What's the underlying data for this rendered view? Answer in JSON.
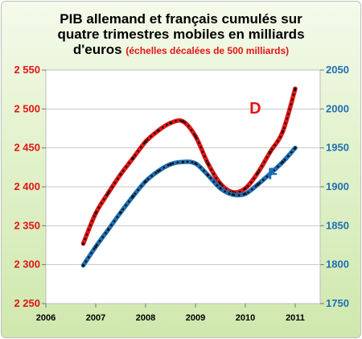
{
  "chart_data": {
    "type": "line",
    "title_line1": "PIB allemand et français cumulés sur",
    "title_line2": "quatre trimestres mobiles en milliards",
    "title_line3": "d'euros",
    "title_note": "(échelles décalées de 500 milliards)",
    "x_ticks": [
      "2006",
      "2007",
      "2008",
      "2009",
      "2010",
      "2011"
    ],
    "x_range": [
      2006,
      2011.5
    ],
    "y_left": {
      "range": [
        2250,
        2550
      ],
      "ticks": [
        "2 250",
        "2 300",
        "2 350",
        "2 400",
        "2 450",
        "2 500",
        "2 550"
      ],
      "color": "#e41414"
    },
    "y_right": {
      "range": [
        1750,
        2050
      ],
      "ticks": [
        "1750",
        "1800",
        "1850",
        "1900",
        "1950",
        "2000",
        "2050"
      ],
      "color": "#1f6fb2"
    },
    "grid": "horizontal",
    "series": [
      {
        "name": "D",
        "axis": "left",
        "color": "#e41414",
        "x": [
          2006.75,
          2007.0,
          2007.25,
          2007.5,
          2007.75,
          2008.0,
          2008.25,
          2008.5,
          2008.75,
          2009.0,
          2009.25,
          2009.5,
          2009.75,
          2010.0,
          2010.25,
          2010.5,
          2010.75,
          2011.0
        ],
        "y": [
          2327,
          2366,
          2392,
          2416,
          2437,
          2458,
          2472,
          2482,
          2484,
          2465,
          2430,
          2404,
          2393,
          2398,
          2418,
          2445,
          2471,
          2526
        ]
      },
      {
        "name": "F",
        "axis": "right",
        "color": "#1f6fb2",
        "x": [
          2006.75,
          2007.0,
          2007.25,
          2007.5,
          2007.75,
          2008.0,
          2008.25,
          2008.5,
          2008.75,
          2009.0,
          2009.25,
          2009.5,
          2009.75,
          2010.0,
          2010.25,
          2010.5,
          2010.75,
          2011.0
        ],
        "y": [
          1799,
          1823,
          1845,
          1867,
          1888,
          1907,
          1920,
          1929,
          1932,
          1930,
          1915,
          1898,
          1890,
          1891,
          1903,
          1917,
          1932,
          1950
        ]
      }
    ]
  }
}
